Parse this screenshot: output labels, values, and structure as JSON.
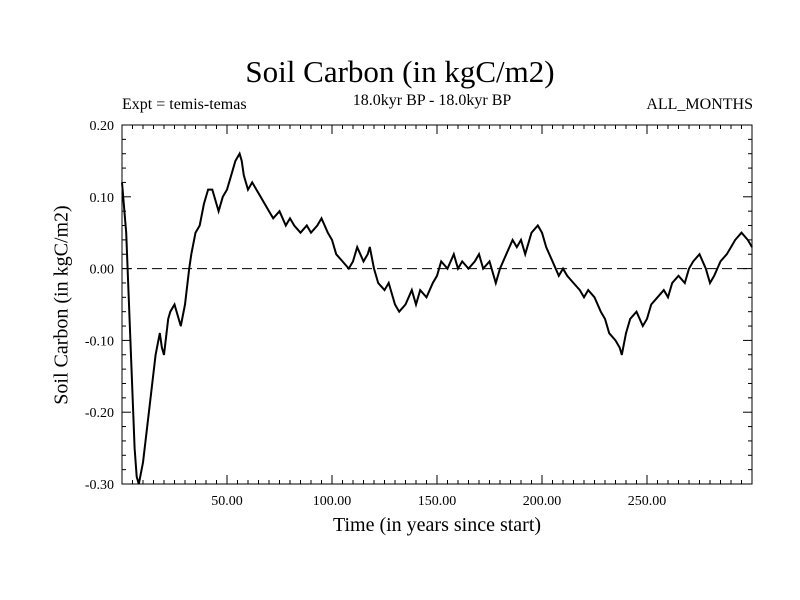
{
  "chart_data": {
    "type": "line",
    "title": "Soil Carbon (in kgC/m2)",
    "subtitle_left": "Expt = temis-temas",
    "subtitle_center": "18.0kyr BP - 18.0kyr BP",
    "subtitle_right": "ALL_MONTHS",
    "xlabel": "Time (in years since start)",
    "ylabel": "Soil Carbon (in kgC/m2)",
    "xlim": [
      0,
      300
    ],
    "ylim": [
      -0.3,
      0.2
    ],
    "xticks": [
      50,
      100,
      150,
      200,
      250
    ],
    "xtick_labels": [
      "50.00",
      "100.00",
      "150.00",
      "200.00",
      "250.00"
    ],
    "yticks": [
      0.2,
      0.1,
      0.0,
      -0.1,
      -0.2,
      -0.3
    ],
    "ytick_labels": [
      "0.20",
      "0.10",
      "0.00",
      "-0.10",
      "-0.20",
      "-0.30"
    ],
    "reference_line": 0.0,
    "series": [
      {
        "name": "Soil Carbon",
        "x": [
          0,
          2,
          4,
          6,
          7,
          8,
          10,
          12,
          14,
          16,
          18,
          19,
          20,
          22,
          23,
          25,
          27,
          28,
          30,
          32,
          33,
          35,
          37,
          39,
          41,
          43,
          45,
          46,
          48,
          50,
          52,
          54,
          56,
          57,
          58,
          60,
          62,
          64,
          66,
          68,
          70,
          72,
          75,
          78,
          80,
          82,
          85,
          88,
          90,
          93,
          95,
          98,
          100,
          102,
          105,
          108,
          110,
          112,
          115,
          117,
          118,
          120,
          122,
          125,
          127,
          130,
          132,
          135,
          138,
          140,
          142,
          145,
          148,
          150,
          152,
          155,
          158,
          160,
          162,
          165,
          168,
          170,
          172,
          175,
          178,
          180,
          183,
          186,
          188,
          190,
          192,
          195,
          198,
          200,
          202,
          205,
          208,
          210,
          212,
          215,
          218,
          220,
          222,
          225,
          228,
          230,
          232,
          235,
          237,
          238,
          240,
          242,
          245,
          248,
          250,
          252,
          255,
          258,
          260,
          262,
          265,
          268,
          270,
          272,
          275,
          278,
          280,
          282,
          285,
          288,
          290,
          292,
          295,
          298,
          300
        ],
        "y": [
          0.12,
          0.05,
          -0.1,
          -0.25,
          -0.29,
          -0.3,
          -0.27,
          -0.22,
          -0.17,
          -0.12,
          -0.09,
          -0.11,
          -0.12,
          -0.07,
          -0.06,
          -0.05,
          -0.07,
          -0.08,
          -0.05,
          0.0,
          0.02,
          0.05,
          0.06,
          0.09,
          0.11,
          0.11,
          0.09,
          0.08,
          0.1,
          0.11,
          0.13,
          0.15,
          0.16,
          0.15,
          0.13,
          0.11,
          0.12,
          0.11,
          0.1,
          0.09,
          0.08,
          0.07,
          0.08,
          0.06,
          0.07,
          0.06,
          0.05,
          0.06,
          0.05,
          0.06,
          0.07,
          0.05,
          0.04,
          0.02,
          0.01,
          0.0,
          0.01,
          0.03,
          0.01,
          0.02,
          0.03,
          0.0,
          -0.02,
          -0.03,
          -0.02,
          -0.05,
          -0.06,
          -0.05,
          -0.03,
          -0.05,
          -0.03,
          -0.04,
          -0.02,
          -0.01,
          0.01,
          0.0,
          0.02,
          0.0,
          0.01,
          0.0,
          0.01,
          0.02,
          0.0,
          0.01,
          -0.02,
          0.0,
          0.02,
          0.04,
          0.03,
          0.04,
          0.02,
          0.05,
          0.06,
          0.05,
          0.03,
          0.01,
          -0.01,
          0.0,
          -0.01,
          -0.02,
          -0.03,
          -0.04,
          -0.03,
          -0.04,
          -0.06,
          -0.07,
          -0.09,
          -0.1,
          -0.11,
          -0.12,
          -0.09,
          -0.07,
          -0.06,
          -0.08,
          -0.07,
          -0.05,
          -0.04,
          -0.03,
          -0.04,
          -0.02,
          -0.01,
          -0.02,
          0.0,
          0.01,
          0.02,
          0.0,
          -0.02,
          -0.01,
          0.01,
          0.02,
          0.03,
          0.04,
          0.05,
          0.04,
          0.03
        ]
      }
    ]
  }
}
